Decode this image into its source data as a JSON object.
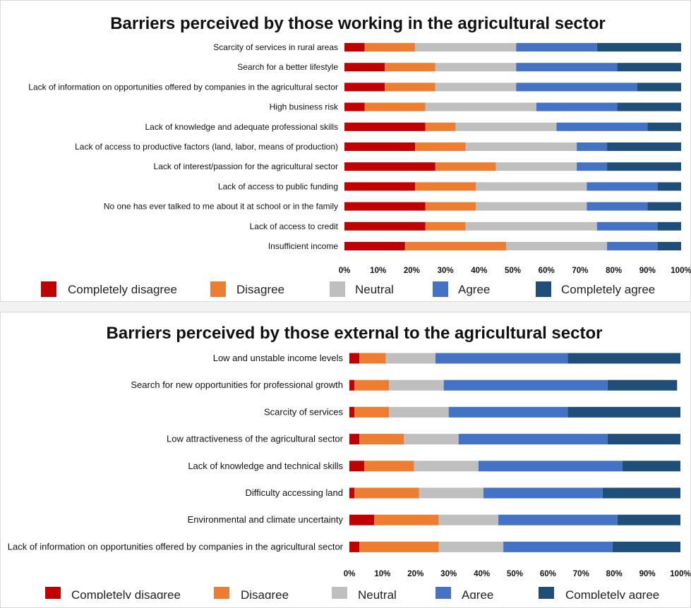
{
  "charts": [
    {
      "type": "bar",
      "orientation": "horizontal",
      "stacked": true,
      "title": "Barriers perceived by those working in the agricultural sector",
      "categories": [
        "Scarcity of services in rural areas",
        "Search for a better lifestyle",
        "Lack of information on opportunities offered by companies in the agricultural sector",
        "High business risk",
        "Lack of knowledge and adequate professional skills",
        "Lack of access to productive factors (land, labor, means of production)",
        "Lack of interest/passion for the agricultural sector",
        "Lack of access to public funding",
        "No one has ever talked to me about it at school or in the family",
        "Lack of access to credit",
        "Insufficient income"
      ],
      "series": [
        {
          "name": "Completely disagree",
          "color": "#c00000",
          "values": [
            6,
            12,
            12,
            6,
            24,
            21,
            27,
            21,
            24,
            24,
            18
          ]
        },
        {
          "name": "Disagree",
          "color": "#ed7d31",
          "values": [
            15,
            15,
            15,
            18,
            9,
            15,
            18,
            18,
            15,
            12,
            30
          ]
        },
        {
          "name": "Neutral",
          "color": "#bfbfbf",
          "values": [
            30,
            24,
            24,
            33,
            30,
            33,
            24,
            33,
            33,
            39,
            30
          ]
        },
        {
          "name": "Agree",
          "color": "#4472c4",
          "values": [
            24,
            30,
            36,
            24,
            27,
            9,
            9,
            21,
            18,
            18,
            15
          ]
        },
        {
          "name": "Completely agree",
          "color": "#1f4e79",
          "values": [
            25,
            19,
            13,
            19,
            10,
            22,
            22,
            7,
            10,
            7,
            7
          ]
        }
      ],
      "xlim": [
        0,
        100
      ],
      "x_ticks": [
        "0%",
        "10%",
        "20%",
        "30%",
        "40%",
        "50%",
        "60%",
        "70%",
        "80%",
        "90%",
        "100%"
      ],
      "legend_position": "bottom",
      "grid": false
    },
    {
      "type": "bar",
      "orientation": "horizontal",
      "stacked": true,
      "title": "Barriers perceived by those external to the agricultural sector",
      "categories": [
        "Low and unstable income levels",
        "Search for new opportunities for professional growth",
        "Scarcity of services",
        "Low attractiveness of the agricultural sector",
        "Lack of knowledge and technical skills",
        "Difficulty accessing land",
        "Environmental and climate uncertainty",
        "Lack of information on opportunities offered by companies in the agricultural sector"
      ],
      "series": [
        {
          "name": "Completely disagree",
          "color": "#c00000",
          "values": [
            3,
            1.5,
            1.5,
            3,
            4.5,
            1.5,
            7.5,
            3
          ]
        },
        {
          "name": "Disagree",
          "color": "#ed7d31",
          "values": [
            8,
            10.5,
            10.5,
            13.5,
            15,
            19.5,
            19.5,
            24
          ]
        },
        {
          "name": "Neutral",
          "color": "#bfbfbf",
          "values": [
            15,
            16.5,
            18,
            16.5,
            19.5,
            19.5,
            18,
            19.5
          ]
        },
        {
          "name": "Agree",
          "color": "#4472c4",
          "values": [
            40,
            49.5,
            36,
            45,
            43.5,
            36,
            36,
            33
          ]
        },
        {
          "name": "Completely agree",
          "color": "#1f4e79",
          "values": [
            34,
            21,
            34,
            22,
            17.5,
            23.5,
            19,
            20.5
          ]
        }
      ],
      "xlim": [
        0,
        100
      ],
      "x_ticks": [
        "0%",
        "10%",
        "20%",
        "30%",
        "40%",
        "50%",
        "60%",
        "70%",
        "80%",
        "90%",
        "100%"
      ],
      "legend_position": "bottom",
      "grid": false
    }
  ]
}
